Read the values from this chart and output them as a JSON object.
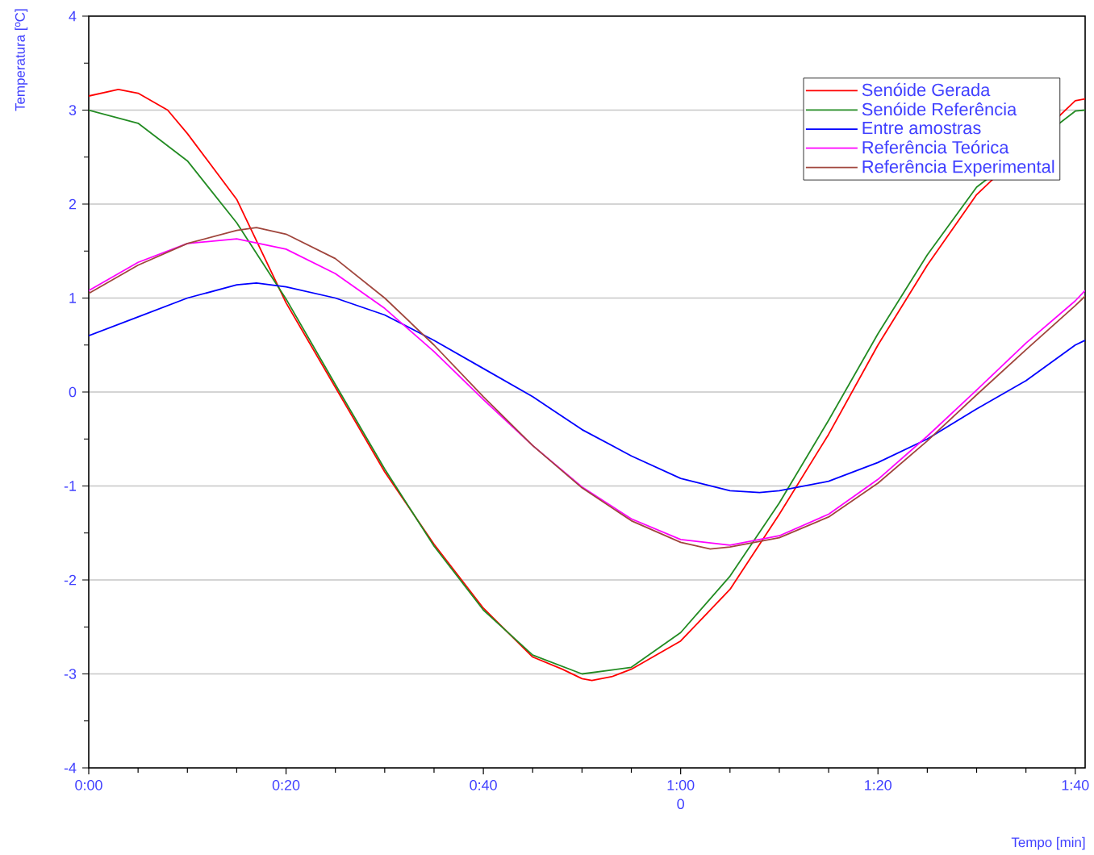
{
  "chart_data": {
    "type": "line",
    "xlabel": "Tempo [min]",
    "ylabel": "Temperatura [ºC]",
    "xlim": [
      0,
      101
    ],
    "ylim": [
      -4,
      4
    ],
    "xticks": [
      {
        "value": 0,
        "label": "0:00"
      },
      {
        "value": 20,
        "label": "0:20"
      },
      {
        "value": 40,
        "label": "0:40"
      },
      {
        "value": 60,
        "label": "1:00"
      },
      {
        "value": 80,
        "label": "1:20"
      },
      {
        "value": 100,
        "label": "1:40"
      }
    ],
    "yticks": [
      -4,
      -3,
      -2,
      -1,
      0,
      1,
      2,
      3,
      4
    ],
    "grid": "y",
    "legend": "top right",
    "annotations": [
      "0"
    ],
    "series": [
      {
        "name": "Senóide Gerada",
        "color": "#ff0000",
        "x": [
          0,
          3,
          5,
          8,
          10,
          15,
          20,
          25,
          30,
          35,
          40,
          45,
          48,
          50,
          51,
          53,
          55,
          60,
          65,
          70,
          75,
          80,
          85,
          90,
          95,
          98,
          100,
          101
        ],
        "values": [
          3.15,
          3.22,
          3.18,
          3.0,
          2.75,
          2.05,
          0.95,
          0.05,
          -0.85,
          -1.62,
          -2.3,
          -2.82,
          -2.95,
          -3.05,
          -3.07,
          -3.03,
          -2.95,
          -2.65,
          -2.1,
          -1.3,
          -0.45,
          0.5,
          1.35,
          2.1,
          null,
          null,
          3.1,
          3.12
        ]
      },
      {
        "name": "Senóide Referência",
        "color": "#228b22",
        "x": [
          0,
          5,
          10,
          15,
          20,
          25,
          30,
          35,
          40,
          45,
          50,
          55,
          60,
          65,
          70,
          75,
          80,
          85,
          90,
          95,
          100,
          101
        ],
        "values": [
          3.0,
          2.86,
          2.46,
          1.8,
          0.99,
          0.08,
          -0.82,
          -1.64,
          -2.32,
          -2.8,
          -3.0,
          -2.93,
          -2.56,
          -1.96,
          -1.18,
          -0.3,
          0.62,
          1.46,
          2.18,
          null,
          2.99,
          3.0
        ]
      },
      {
        "name": "Entre amostras",
        "color": "#0000ff",
        "x": [
          0,
          5,
          10,
          15,
          17,
          20,
          25,
          30,
          35,
          40,
          45,
          50,
          55,
          60,
          65,
          68,
          70,
          75,
          80,
          85,
          90,
          95,
          100,
          101
        ],
        "values": [
          0.6,
          0.8,
          1.0,
          1.14,
          1.16,
          1.12,
          1.0,
          0.82,
          0.55,
          0.25,
          -0.05,
          -0.4,
          -0.68,
          -0.92,
          -1.05,
          -1.07,
          -1.05,
          -0.95,
          -0.75,
          -0.5,
          -0.18,
          0.12,
          0.5,
          0.55
        ]
      },
      {
        "name": "Referência Teórica",
        "color": "#ff00ff",
        "x": [
          0,
          5,
          10,
          15,
          20,
          25,
          30,
          35,
          40,
          45,
          50,
          55,
          60,
          65,
          70,
          75,
          80,
          85,
          90,
          95,
          100,
          101
        ],
        "values": [
          1.08,
          1.38,
          1.58,
          1.63,
          1.52,
          1.26,
          0.89,
          0.43,
          -0.08,
          -0.57,
          -1.01,
          -1.35,
          -1.57,
          -1.63,
          -1.53,
          -1.3,
          -0.93,
          -0.47,
          0.02,
          0.52,
          0.97,
          1.08
        ]
      },
      {
        "name": "Referência Experimental",
        "color": "#a0453c",
        "x": [
          0,
          5,
          10,
          15,
          17,
          20,
          25,
          30,
          35,
          40,
          45,
          50,
          55,
          60,
          63,
          65,
          70,
          75,
          80,
          85,
          90,
          95,
          100,
          101
        ],
        "values": [
          1.05,
          1.35,
          1.58,
          1.72,
          1.75,
          1.68,
          1.42,
          1.0,
          0.5,
          -0.05,
          -0.57,
          -1.02,
          -1.37,
          -1.6,
          -1.67,
          -1.65,
          -1.55,
          -1.33,
          -0.97,
          -0.52,
          -0.03,
          0.45,
          0.92,
          1.02
        ]
      }
    ]
  }
}
